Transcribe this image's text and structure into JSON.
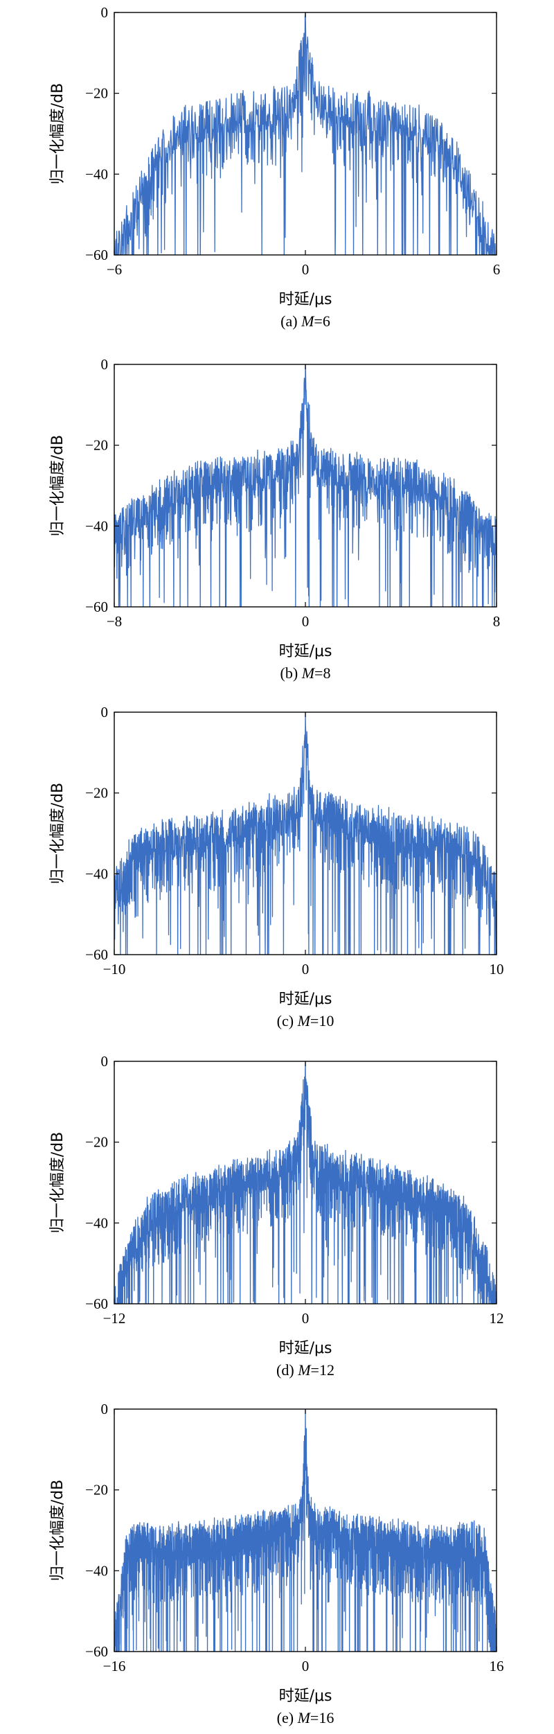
{
  "chart_data": [
    {
      "type": "line",
      "caption": "(a) M=6",
      "caption_prefix": "(a) ",
      "caption_var": "M",
      "caption_suffix": "=6",
      "xlabel": "时延/μs",
      "ylabel": "归一化幅度/dB",
      "xlim": [
        -6,
        6
      ],
      "ylim": [
        -60,
        0
      ],
      "xticks": [
        -6,
        0,
        6
      ],
      "yticks": [
        0,
        -20,
        -40,
        -60
      ],
      "xticklabels": [
        "−6",
        "0",
        "6"
      ],
      "yticklabels": [
        "0",
        "−20",
        "−40",
        "−60"
      ],
      "envelope": {
        "x": [
          -6.0,
          -5.6,
          -5.0,
          -4.4,
          -3.8,
          -3.0,
          -2.0,
          -1.0,
          -0.4,
          0.0,
          0.4,
          1.0,
          2.0,
          3.0,
          3.8,
          4.4,
          5.0,
          5.6,
          6.0
        ],
        "y": [
          -55,
          -48,
          -36,
          -28,
          -24,
          -22,
          -20,
          -19,
          -18,
          0,
          -18,
          -19,
          -20,
          -22,
          -24,
          -28,
          -36,
          -48,
          -55
        ]
      },
      "series": [
        {
          "color": "#3a6fc4"
        }
      ]
    },
    {
      "type": "line",
      "caption": "(b) M=8",
      "caption_prefix": "(b) ",
      "caption_var": "M",
      "caption_suffix": "=8",
      "xlabel": "时延/μs",
      "ylabel": "归一化幅度/dB",
      "xlim": [
        -8,
        8
      ],
      "ylim": [
        -60,
        0
      ],
      "xticks": [
        -8,
        0,
        8
      ],
      "yticks": [
        0,
        -20,
        -40,
        -60
      ],
      "xticklabels": [
        "−8",
        "0",
        "8"
      ],
      "yticklabels": [
        "0",
        "−20",
        "−40",
        "−60"
      ],
      "envelope": {
        "x": [
          -8.0,
          -7.5,
          -7.0,
          -6.0,
          -5.0,
          -4.0,
          -3.0,
          -2.0,
          -1.0,
          -0.3,
          0.0,
          0.3,
          1.0,
          2.0,
          3.0,
          4.0,
          5.0,
          6.0,
          7.0,
          7.5,
          8.0
        ],
        "y": [
          -38,
          -35,
          -32,
          -28,
          -25,
          -23,
          -23,
          -22,
          -21,
          -18,
          0,
          -18,
          -21,
          -22,
          -23,
          -23,
          -25,
          -28,
          -32,
          -35,
          -38
        ]
      },
      "series": [
        {
          "color": "#3a6fc4"
        }
      ]
    },
    {
      "type": "line",
      "caption": "(c) M=10",
      "caption_prefix": "(c) ",
      "caption_var": "M",
      "caption_suffix": "=10",
      "xlabel": "时延/μs",
      "ylabel": "归一化幅度/dB",
      "xlim": [
        -10,
        10
      ],
      "ylim": [
        -60,
        0
      ],
      "xticks": [
        -10,
        0,
        10
      ],
      "yticks": [
        0,
        -20,
        -40,
        -60
      ],
      "xticklabels": [
        "−10",
        "0",
        "10"
      ],
      "yticklabels": [
        "0",
        "−20",
        "−40",
        "−60"
      ],
      "envelope": {
        "x": [
          -10.0,
          -9.5,
          -9.0,
          -8.0,
          -6.0,
          -4.0,
          -2.0,
          -1.0,
          -0.3,
          0.0,
          0.3,
          1.0,
          2.0,
          4.0,
          6.0,
          8.0,
          9.0,
          9.5,
          10.0
        ],
        "y": [
          -40,
          -35,
          -30,
          -27,
          -26,
          -24,
          -21,
          -20,
          -17,
          0,
          -17,
          -20,
          -21,
          -24,
          -26,
          -27,
          -30,
          -35,
          -40
        ]
      },
      "series": [
        {
          "color": "#3a6fc4"
        }
      ]
    },
    {
      "type": "line",
      "caption": "(d) M=12",
      "caption_prefix": "(d) ",
      "caption_var": "M",
      "caption_suffix": "=12",
      "xlabel": "时延/μs",
      "ylabel": "归一化幅度/dB",
      "xlim": [
        -12,
        12
      ],
      "ylim": [
        -60,
        0
      ],
      "xticks": [
        -12,
        0,
        12
      ],
      "yticks": [
        0,
        -20,
        -40,
        -60
      ],
      "xticklabels": [
        "−12",
        "0",
        "12"
      ],
      "yticklabels": [
        "0",
        "−20",
        "−40",
        "−60"
      ],
      "envelope": {
        "x": [
          -12.0,
          -11.5,
          -11.0,
          -10.0,
          -8.0,
          -6.0,
          -4.0,
          -2.0,
          -0.5,
          0.0,
          0.5,
          2.0,
          4.0,
          6.0,
          8.0,
          10.0,
          11.0,
          11.5,
          12.0
        ],
        "y": [
          -56,
          -48,
          -42,
          -34,
          -29,
          -27,
          -24,
          -22,
          -19,
          0,
          -19,
          -22,
          -24,
          -27,
          -29,
          -34,
          -42,
          -48,
          -56
        ]
      },
      "series": [
        {
          "color": "#3a6fc4"
        }
      ]
    },
    {
      "type": "line",
      "caption": "(e) M=16",
      "caption_prefix": "(e) ",
      "caption_var": "M",
      "caption_suffix": "=16",
      "xlabel": "时延/μs",
      "ylabel": "归一化幅度/dB",
      "xlim": [
        -16,
        16
      ],
      "ylim": [
        -60,
        0
      ],
      "xticks": [
        -16,
        0,
        16
      ],
      "yticks": [
        0,
        -20,
        -40,
        -60
      ],
      "xticklabels": [
        "−16",
        "0",
        "16"
      ],
      "yticklabels": [
        "0",
        "−20",
        "−40",
        "−60"
      ],
      "envelope": {
        "x": [
          -16.0,
          -15.5,
          -15.0,
          -14.0,
          -12.0,
          -8.0,
          -4.0,
          -1.0,
          -0.3,
          0.0,
          0.3,
          1.0,
          4.0,
          8.0,
          12.0,
          14.0,
          15.0,
          15.5,
          16.0
        ],
        "y": [
          -52,
          -42,
          -30,
          -28,
          -29,
          -28,
          -26,
          -24,
          -22,
          0,
          -22,
          -24,
          -26,
          -28,
          -29,
          -28,
          -30,
          -42,
          -52
        ]
      },
      "series": [
        {
          "color": "#3a6fc4"
        }
      ]
    }
  ]
}
